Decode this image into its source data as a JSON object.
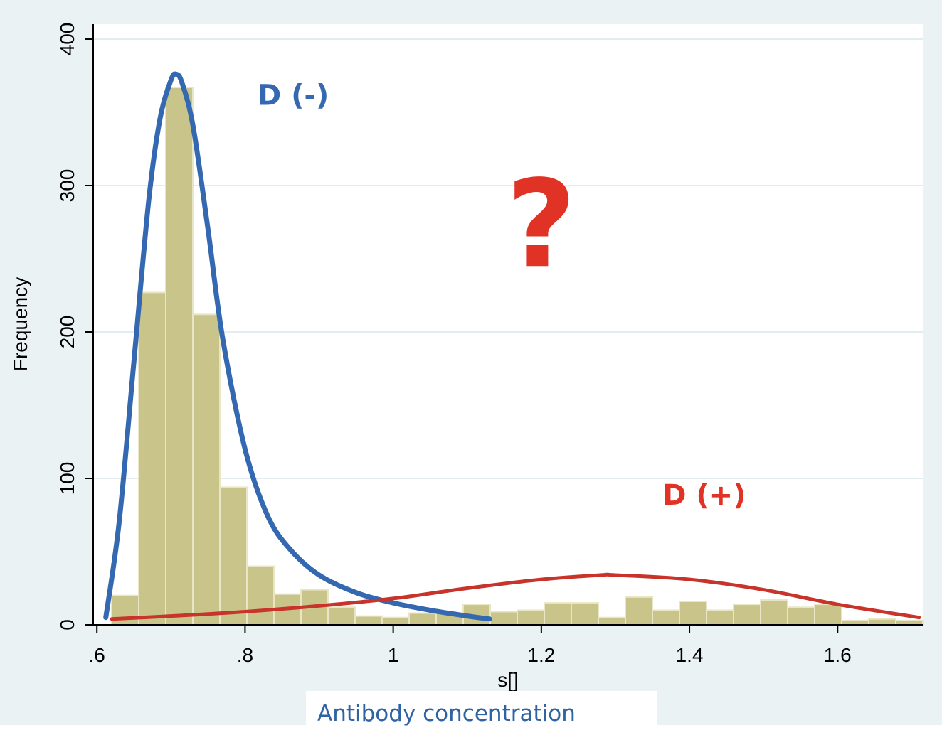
{
  "caption": "Antibody concentration",
  "chart_data": {
    "type": "bar",
    "title": "",
    "xlabel": "s[]",
    "ylabel": "Frequency",
    "xlim": [
      0.595,
      1.715
    ],
    "ylim": [
      0,
      400
    ],
    "x_ticks": [
      {
        "value": 0.6,
        "label": ".6"
      },
      {
        "value": 0.8,
        "label": ".8"
      },
      {
        "value": 1.0,
        "label": "1"
      },
      {
        "value": 1.2,
        "label": "1.2"
      },
      {
        "value": 1.4,
        "label": "1.4"
      },
      {
        "value": 1.6,
        "label": "1.6"
      }
    ],
    "y_ticks": [
      {
        "value": 0,
        "label": "0"
      },
      {
        "value": 100,
        "label": "100"
      },
      {
        "value": 200,
        "label": "200"
      },
      {
        "value": 300,
        "label": "300"
      },
      {
        "value": 400,
        "label": "400"
      }
    ],
    "grid": true,
    "bin_width": 0.0365,
    "bin_start": 0.62,
    "values": [
      20,
      227,
      367,
      212,
      94,
      40,
      21,
      24,
      12,
      6,
      5,
      8,
      8,
      14,
      9,
      10,
      15,
      15,
      5,
      19,
      10,
      16,
      10,
      14,
      17,
      12,
      14,
      3,
      4,
      3
    ],
    "bar_color": "#c8c48a",
    "curves": [
      {
        "label": "D (-)",
        "color": "#3468b0",
        "points": [
          [
            0.612,
            5
          ],
          [
            0.63,
            70
          ],
          [
            0.65,
            180
          ],
          [
            0.67,
            290
          ],
          [
            0.685,
            345
          ],
          [
            0.7,
            372
          ],
          [
            0.707,
            376
          ],
          [
            0.715,
            370
          ],
          [
            0.73,
            340
          ],
          [
            0.75,
            270
          ],
          [
            0.77,
            195
          ],
          [
            0.8,
            120
          ],
          [
            0.83,
            75
          ],
          [
            0.86,
            52
          ],
          [
            0.9,
            34
          ],
          [
            0.95,
            22
          ],
          [
            1.0,
            15
          ],
          [
            1.05,
            10
          ],
          [
            1.1,
            6
          ],
          [
            1.13,
            4
          ]
        ]
      },
      {
        "label": "D (+)",
        "color": "#c8342a",
        "points": [
          [
            0.62,
            4
          ],
          [
            0.7,
            6
          ],
          [
            0.8,
            9
          ],
          [
            0.9,
            13
          ],
          [
            1.0,
            18
          ],
          [
            1.1,
            25
          ],
          [
            1.2,
            31
          ],
          [
            1.28,
            34
          ],
          [
            1.3,
            34
          ],
          [
            1.4,
            31
          ],
          [
            1.5,
            24
          ],
          [
            1.6,
            14
          ],
          [
            1.71,
            5
          ]
        ]
      }
    ],
    "annotations": [
      {
        "text": "D (-)",
        "x": 0.865,
        "y": 355,
        "color": "#3468b0"
      },
      {
        "text": "D (+)",
        "x": 1.42,
        "y": 82,
        "color": "#e03326"
      },
      {
        "text": "?",
        "x": 1.2,
        "y": 245,
        "color": "#e03326"
      }
    ]
  }
}
